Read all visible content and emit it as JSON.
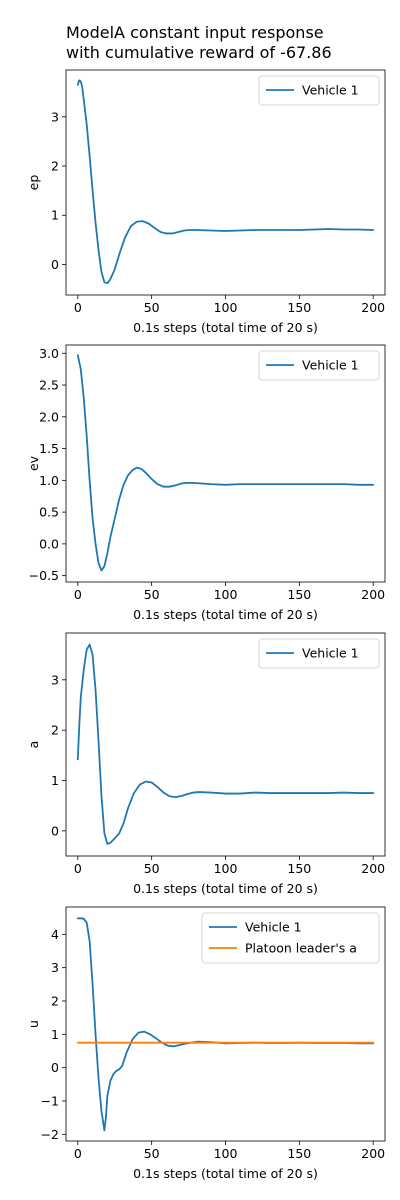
{
  "title_lines": [
    "ModelA constant input response",
    "with cumulative reward of -67.86"
  ],
  "colors": {
    "vehicle1": "#1f77b4",
    "leader": "#ff7f0e"
  },
  "chart_data": [
    {
      "type": "line",
      "xlabel": "0.1s steps (total time of 20 s)",
      "ylabel": "ep",
      "xlim": [
        -8,
        208
      ],
      "ylim": [
        -0.62,
        3.95
      ],
      "xticks": [
        0,
        50,
        100,
        150,
        200
      ],
      "yticks": [
        0,
        1,
        2,
        3
      ],
      "legend_position": "upper-right",
      "series": [
        {
          "name": "Vehicle 1",
          "color": "#1f77b4",
          "points": [
            [
              0,
              3.65
            ],
            [
              1,
              3.74
            ],
            [
              2,
              3.72
            ],
            [
              3,
              3.6
            ],
            [
              4,
              3.35
            ],
            [
              6,
              2.85
            ],
            [
              8,
              2.2
            ],
            [
              10,
              1.5
            ],
            [
              12,
              0.85
            ],
            [
              14,
              0.3
            ],
            [
              16,
              -0.15
            ],
            [
              18,
              -0.36
            ],
            [
              20,
              -0.38
            ],
            [
              22,
              -0.3
            ],
            [
              25,
              -0.1
            ],
            [
              28,
              0.2
            ],
            [
              32,
              0.55
            ],
            [
              36,
              0.78
            ],
            [
              40,
              0.87
            ],
            [
              44,
              0.88
            ],
            [
              48,
              0.83
            ],
            [
              52,
              0.74
            ],
            [
              56,
              0.66
            ],
            [
              60,
              0.63
            ],
            [
              64,
              0.63
            ],
            [
              68,
              0.66
            ],
            [
              72,
              0.69
            ],
            [
              76,
              0.7
            ],
            [
              80,
              0.7
            ],
            [
              90,
              0.69
            ],
            [
              100,
              0.68
            ],
            [
              110,
              0.69
            ],
            [
              120,
              0.7
            ],
            [
              130,
              0.7
            ],
            [
              140,
              0.7
            ],
            [
              150,
              0.7
            ],
            [
              160,
              0.71
            ],
            [
              170,
              0.72
            ],
            [
              180,
              0.71
            ],
            [
              190,
              0.71
            ],
            [
              200,
              0.7
            ]
          ]
        }
      ]
    },
    {
      "type": "line",
      "xlabel": "0.1s steps (total time of 20 s)",
      "ylabel": "ev",
      "xlim": [
        -8,
        208
      ],
      "ylim": [
        -0.6,
        3.13
      ],
      "xticks": [
        0,
        50,
        100,
        150,
        200
      ],
      "yticks": [
        -0.5,
        0.0,
        0.5,
        1.0,
        1.5,
        2.0,
        2.5,
        3.0
      ],
      "tick_format": "fixed1",
      "legend_position": "upper-right",
      "series": [
        {
          "name": "Vehicle 1",
          "color": "#1f77b4",
          "points": [
            [
              0,
              2.97
            ],
            [
              2,
              2.75
            ],
            [
              4,
              2.3
            ],
            [
              6,
              1.7
            ],
            [
              8,
              1.0
            ],
            [
              10,
              0.4
            ],
            [
              12,
              0.0
            ],
            [
              14,
              -0.3
            ],
            [
              16,
              -0.42
            ],
            [
              18,
              -0.35
            ],
            [
              20,
              -0.15
            ],
            [
              22,
              0.1
            ],
            [
              25,
              0.4
            ],
            [
              28,
              0.7
            ],
            [
              31,
              0.93
            ],
            [
              34,
              1.08
            ],
            [
              37,
              1.16
            ],
            [
              40,
              1.2
            ],
            [
              43,
              1.18
            ],
            [
              46,
              1.12
            ],
            [
              50,
              1.02
            ],
            [
              54,
              0.94
            ],
            [
              58,
              0.9
            ],
            [
              62,
              0.9
            ],
            [
              66,
              0.92
            ],
            [
              70,
              0.95
            ],
            [
              74,
              0.96
            ],
            [
              78,
              0.96
            ],
            [
              84,
              0.95
            ],
            [
              90,
              0.94
            ],
            [
              100,
              0.93
            ],
            [
              110,
              0.94
            ],
            [
              120,
              0.94
            ],
            [
              130,
              0.94
            ],
            [
              140,
              0.94
            ],
            [
              150,
              0.94
            ],
            [
              160,
              0.94
            ],
            [
              170,
              0.94
            ],
            [
              180,
              0.94
            ],
            [
              190,
              0.93
            ],
            [
              200,
              0.93
            ]
          ]
        }
      ]
    },
    {
      "type": "line",
      "xlabel": "0.1s steps (total time of 20 s)",
      "ylabel": "a",
      "xlim": [
        -8,
        208
      ],
      "ylim": [
        -0.5,
        3.93
      ],
      "xticks": [
        0,
        50,
        100,
        150,
        200
      ],
      "yticks": [
        0,
        1,
        2,
        3
      ],
      "legend_position": "upper-right",
      "series": [
        {
          "name": "Vehicle 1",
          "color": "#1f77b4",
          "points": [
            [
              0,
              1.42
            ],
            [
              1,
              2.1
            ],
            [
              2,
              2.65
            ],
            [
              4,
              3.2
            ],
            [
              6,
              3.6
            ],
            [
              8,
              3.7
            ],
            [
              10,
              3.5
            ],
            [
              12,
              2.8
            ],
            [
              14,
              1.8
            ],
            [
              16,
              0.7
            ],
            [
              18,
              -0.05
            ],
            [
              20,
              -0.26
            ],
            [
              22,
              -0.24
            ],
            [
              25,
              -0.15
            ],
            [
              28,
              -0.05
            ],
            [
              31,
              0.15
            ],
            [
              34,
              0.45
            ],
            [
              38,
              0.75
            ],
            [
              42,
              0.92
            ],
            [
              46,
              0.98
            ],
            [
              50,
              0.96
            ],
            [
              54,
              0.87
            ],
            [
              58,
              0.76
            ],
            [
              62,
              0.69
            ],
            [
              66,
              0.67
            ],
            [
              70,
              0.69
            ],
            [
              74,
              0.73
            ],
            [
              78,
              0.76
            ],
            [
              82,
              0.77
            ],
            [
              90,
              0.76
            ],
            [
              100,
              0.74
            ],
            [
              110,
              0.74
            ],
            [
              120,
              0.76
            ],
            [
              130,
              0.75
            ],
            [
              140,
              0.75
            ],
            [
              150,
              0.75
            ],
            [
              160,
              0.75
            ],
            [
              170,
              0.75
            ],
            [
              180,
              0.76
            ],
            [
              190,
              0.75
            ],
            [
              200,
              0.75
            ]
          ]
        }
      ]
    },
    {
      "type": "line",
      "xlabel": "0.1s steps (total time of 20 s)",
      "ylabel": "u",
      "xlim": [
        -8,
        208
      ],
      "ylim": [
        -2.2,
        4.82
      ],
      "xticks": [
        0,
        50,
        100,
        150,
        200
      ],
      "yticks": [
        -2,
        -1,
        0,
        1,
        2,
        3,
        4
      ],
      "legend_position": "upper-right",
      "series": [
        {
          "name": "Vehicle 1",
          "color": "#1f77b4",
          "points": [
            [
              0,
              4.48
            ],
            [
              2,
              4.48
            ],
            [
              4,
              4.47
            ],
            [
              6,
              4.35
            ],
            [
              8,
              3.8
            ],
            [
              10,
              2.5
            ],
            [
              12,
              1.0
            ],
            [
              14,
              -0.3
            ],
            [
              16,
              -1.3
            ],
            [
              18,
              -1.88
            ],
            [
              19,
              -1.5
            ],
            [
              20,
              -0.85
            ],
            [
              22,
              -0.4
            ],
            [
              24,
              -0.2
            ],
            [
              26,
              -0.1
            ],
            [
              28,
              -0.05
            ],
            [
              30,
              0.05
            ],
            [
              33,
              0.45
            ],
            [
              37,
              0.85
            ],
            [
              41,
              1.05
            ],
            [
              45,
              1.08
            ],
            [
              49,
              1.0
            ],
            [
              53,
              0.88
            ],
            [
              57,
              0.75
            ],
            [
              61,
              0.66
            ],
            [
              65,
              0.64
            ],
            [
              69,
              0.68
            ],
            [
              73,
              0.72
            ],
            [
              77,
              0.75
            ],
            [
              81,
              0.78
            ],
            [
              88,
              0.77
            ],
            [
              95,
              0.75
            ],
            [
              100,
              0.73
            ],
            [
              110,
              0.74
            ],
            [
              120,
              0.75
            ],
            [
              130,
              0.74
            ],
            [
              140,
              0.74
            ],
            [
              150,
              0.75
            ],
            [
              160,
              0.74
            ],
            [
              170,
              0.74
            ],
            [
              180,
              0.74
            ],
            [
              190,
              0.73
            ],
            [
              200,
              0.73
            ]
          ]
        },
        {
          "name": "Platoon leader's a",
          "color": "#ff7f0e",
          "points": [
            [
              0,
              0.75
            ],
            [
              200,
              0.75
            ]
          ]
        }
      ]
    }
  ]
}
